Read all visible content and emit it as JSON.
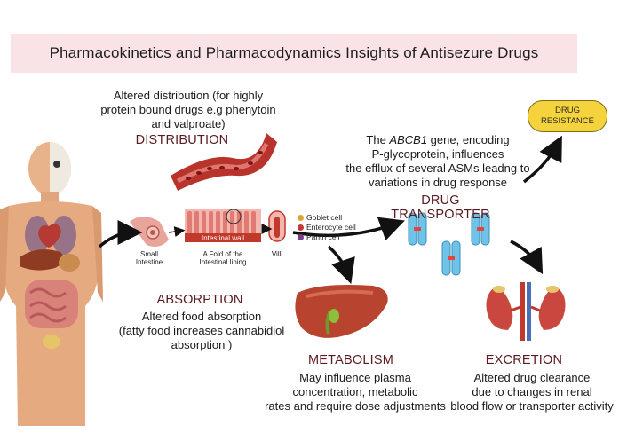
{
  "title": "Pharmacokinetics and Pharmacodynamics Insights of Antisezure Drugs",
  "distribution": {
    "heading": "DISTRIBUTION",
    "line1": "Altered distribution (for highly",
    "line2": "protein bound drugs e.g phenytoin",
    "line3": "and valproate)"
  },
  "absorption": {
    "heading": "ABSORPTION",
    "line1": "Altered food absorption",
    "line2": "(fatty food increases cannabidiol",
    "line3": "absorption )"
  },
  "metabolism": {
    "heading": "METABOLISM",
    "line1": "May influence plasma",
    "line2": "concentration, metabolic",
    "line3": "rates and require dose adjustments"
  },
  "transporter": {
    "heading": "DRUG TRANSPORTER",
    "line1_prefix": "The ",
    "line1_gene": "ABCB1",
    "line1_suffix": " gene, encoding",
    "line2": "P-glycoprotein, influences",
    "line3": "the efflux of several ASMs leadng to",
    "line4": "variations in drug response"
  },
  "excretion": {
    "heading": "EXCRETION",
    "line1": "Altered drug clearance",
    "line2": "due to changes in renal",
    "line3": "blood flow or transporter activity"
  },
  "resistance": {
    "line1": "DRUG",
    "line2": "RESISTANCE"
  },
  "intestine_labels": {
    "small_intestine_1": "Small",
    "small_intestine_2": "Intestine",
    "fold_1": "A Fold of the",
    "fold_2": "Intestinal lining",
    "villi": "Villi",
    "wall": "Intestinal wall"
  },
  "legend": [
    {
      "label": "Goblet cell",
      "color": "#e3a13a"
    },
    {
      "label": "Enterocyte cell",
      "color": "#c23b3b"
    },
    {
      "label": "Panth cell",
      "color": "#7b3f8a"
    }
  ],
  "colors": {
    "title_bg": "#f9e3e6",
    "heading": "#5b1a1f",
    "badge": "#f5d33c",
    "transporter": "#6fc3e8",
    "liver": "#b8432e",
    "kidney": "#c9473f"
  }
}
